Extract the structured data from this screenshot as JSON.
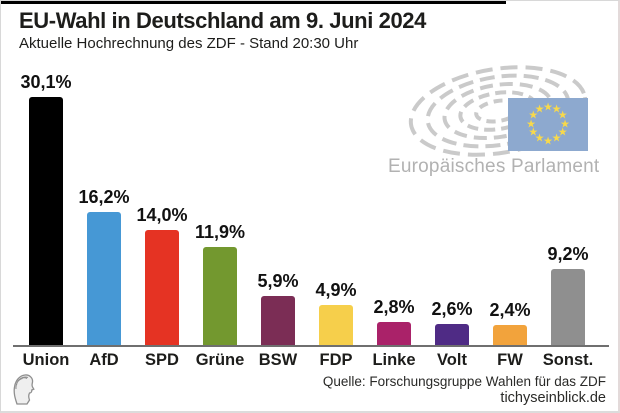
{
  "header": {
    "title": "EU-Wahl in Deutschland am 9. Juni 2024",
    "subtitle": "Aktuelle Hochrechnung des ZDF - Stand 20:30 Uhr"
  },
  "chart_data": {
    "type": "bar",
    "title": "EU-Wahl in Deutschland am 9. Juni 2024",
    "subtitle": "Aktuelle Hochrechnung des ZDF - Stand 20:30 Uhr",
    "categories": [
      "Union",
      "AfD",
      "SPD",
      "Grüne",
      "BSW",
      "FDP",
      "Linke",
      "Volt",
      "FW",
      "Sonst."
    ],
    "values": [
      30.1,
      16.2,
      14.0,
      11.9,
      5.9,
      4.9,
      2.8,
      2.6,
      2.4,
      9.2
    ],
    "value_labels": [
      "30,1%",
      "16,2%",
      "14,0%",
      "11,9%",
      "5,9%",
      "4,9%",
      "2,8%",
      "2,6%",
      "2,4%",
      "9,2%"
    ],
    "bar_colors": [
      "#000000",
      "#4698d5",
      "#e53323",
      "#73982f",
      "#7b2d55",
      "#f6cf4b",
      "#aa2269",
      "#4f2b85",
      "#f2a33c",
      "#8f8f8f"
    ],
    "xlabel": "",
    "ylabel": "",
    "ylim": [
      0,
      32
    ],
    "grid": false,
    "legend": null,
    "source": "Quelle: Forschungsgruppe Wahlen für das ZDF"
  },
  "logo_ep": {
    "label": "Europäisches Parlament",
    "arc_color": "#cacaca",
    "flag_color": "#8da9cf",
    "star_color": "#f8d94b"
  },
  "footer": {
    "source": "Quelle: Forschungsgruppe Wahlen für das ZDF",
    "site": "tichyseinblick.de"
  }
}
